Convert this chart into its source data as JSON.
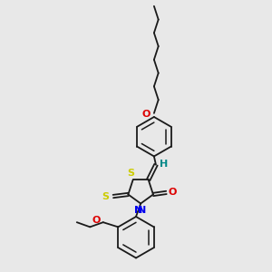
{
  "bg": "#e8e8e8",
  "bc": "#1a1a1a",
  "S_color": "#cccc00",
  "N_color": "#0000ee",
  "O_color": "#dd0000",
  "H_color": "#008888",
  "figsize": [
    3.0,
    3.0
  ],
  "dpi": 100,
  "xlim": [
    50,
    230
  ],
  "ylim": [
    5,
    295
  ]
}
